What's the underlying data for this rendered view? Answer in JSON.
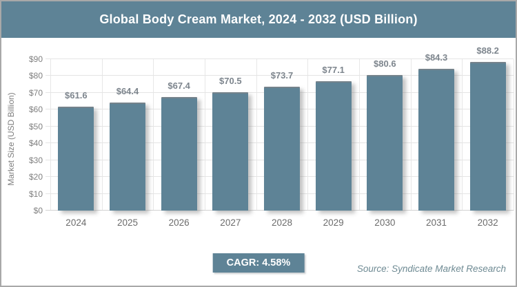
{
  "header": {
    "title": "Global Body Cream Market, 2024 - 2032 (USD Billion)"
  },
  "chart_data": {
    "type": "bar",
    "title": "Global Body Cream Market, 2024 - 2032 (USD Billion)",
    "categories": [
      "2024",
      "2025",
      "2026",
      "2027",
      "2028",
      "2029",
      "2030",
      "2031",
      "2032"
    ],
    "values": [
      61.6,
      64.4,
      67.4,
      70.5,
      73.7,
      77.1,
      80.6,
      84.3,
      88.2
    ],
    "value_labels": [
      "$61.6",
      "$64.4",
      "$67.4",
      "$70.5",
      "$73.7",
      "$77.1",
      "$80.6",
      "$84.3",
      "$88.2"
    ],
    "xlabel": "",
    "ylabel": "Market Size (USD Billion)",
    "ylim": [
      0,
      90
    ],
    "ytick_values": [
      0,
      10,
      20,
      30,
      40,
      50,
      60,
      70,
      80,
      90
    ],
    "ytick_labels": [
      "$0",
      "$10",
      "$20",
      "$30",
      "$40",
      "$50",
      "$60",
      "$70",
      "$80",
      "$90"
    ],
    "grid": "horizontal and vertical gridlines on",
    "legend": "none",
    "bar_color": "#5E8396"
  },
  "footer": {
    "cagr_label": "CAGR: 4.58%",
    "source": "Source: Syndicate Market Research"
  },
  "colors": {
    "accent": "#5E8396",
    "gridline": "#E4E4E4",
    "tick_text": "#7F7F7F",
    "value_text": "#7D858D",
    "source_text": "#6E8A93",
    "frame_border": "#A8A8A8"
  }
}
